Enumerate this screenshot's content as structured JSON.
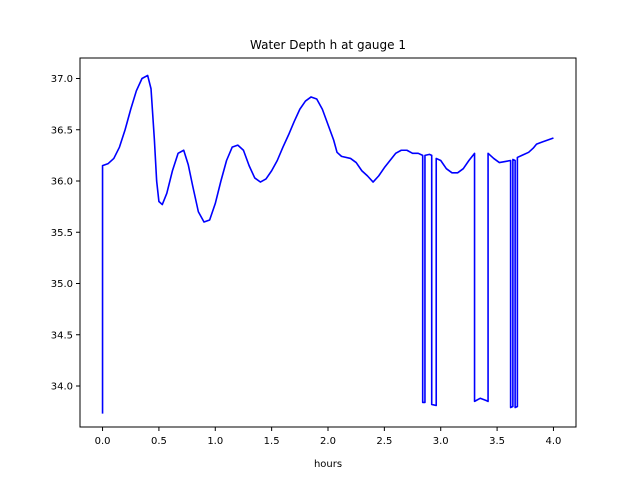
{
  "chart_data": {
    "type": "line",
    "title": "Water Depth h at gauge 1",
    "xlabel": "hours",
    "ylabel": "",
    "xlim": [
      -0.2,
      4.2
    ],
    "ylim": [
      33.6,
      37.2
    ],
    "xticks": [
      0.0,
      0.5,
      1.0,
      1.5,
      2.0,
      2.5,
      3.0,
      3.5,
      4.0
    ],
    "xtick_labels": [
      "0.0",
      "0.5",
      "1.0",
      "1.5",
      "2.0",
      "2.5",
      "3.0",
      "3.5",
      "4.0"
    ],
    "yticks": [
      34.0,
      34.5,
      35.0,
      35.5,
      36.0,
      36.5,
      37.0
    ],
    "ytick_labels": [
      "34.0",
      "34.5",
      "35.0",
      "35.5",
      "36.0",
      "36.5",
      "37.0"
    ],
    "grid": false,
    "legend": "none",
    "series": [
      {
        "color": "#0000ff",
        "points": [
          [
            0.0,
            33.73
          ],
          [
            0.0,
            36.15
          ],
          [
            0.05,
            36.17
          ],
          [
            0.1,
            36.22
          ],
          [
            0.15,
            36.33
          ],
          [
            0.2,
            36.5
          ],
          [
            0.25,
            36.7
          ],
          [
            0.3,
            36.88
          ],
          [
            0.35,
            37.0
          ],
          [
            0.4,
            37.03
          ],
          [
            0.43,
            36.9
          ],
          [
            0.46,
            36.4
          ],
          [
            0.48,
            36.0
          ],
          [
            0.5,
            35.8
          ],
          [
            0.53,
            35.77
          ],
          [
            0.57,
            35.88
          ],
          [
            0.62,
            36.1
          ],
          [
            0.67,
            36.27
          ],
          [
            0.72,
            36.3
          ],
          [
            0.76,
            36.16
          ],
          [
            0.8,
            35.95
          ],
          [
            0.85,
            35.7
          ],
          [
            0.9,
            35.6
          ],
          [
            0.95,
            35.62
          ],
          [
            1.0,
            35.78
          ],
          [
            1.05,
            36.0
          ],
          [
            1.1,
            36.2
          ],
          [
            1.15,
            36.33
          ],
          [
            1.2,
            36.35
          ],
          [
            1.25,
            36.3
          ],
          [
            1.3,
            36.15
          ],
          [
            1.35,
            36.03
          ],
          [
            1.4,
            35.99
          ],
          [
            1.45,
            36.02
          ],
          [
            1.5,
            36.1
          ],
          [
            1.55,
            36.2
          ],
          [
            1.6,
            36.33
          ],
          [
            1.65,
            36.45
          ],
          [
            1.7,
            36.58
          ],
          [
            1.75,
            36.7
          ],
          [
            1.8,
            36.78
          ],
          [
            1.85,
            36.82
          ],
          [
            1.9,
            36.8
          ],
          [
            1.95,
            36.7
          ],
          [
            2.0,
            36.55
          ],
          [
            2.05,
            36.4
          ],
          [
            2.08,
            36.28
          ],
          [
            2.12,
            36.24
          ],
          [
            2.2,
            36.22
          ],
          [
            2.25,
            36.18
          ],
          [
            2.3,
            36.1
          ],
          [
            2.35,
            36.05
          ],
          [
            2.4,
            35.99
          ],
          [
            2.45,
            36.05
          ],
          [
            2.5,
            36.13
          ],
          [
            2.55,
            36.2
          ],
          [
            2.6,
            36.27
          ],
          [
            2.65,
            36.3
          ],
          [
            2.7,
            36.3
          ],
          [
            2.75,
            36.27
          ],
          [
            2.8,
            36.27
          ],
          [
            2.84,
            36.25
          ],
          [
            2.84,
            33.84
          ],
          [
            2.86,
            33.84
          ],
          [
            2.86,
            36.25
          ],
          [
            2.9,
            36.26
          ],
          [
            2.92,
            36.25
          ],
          [
            2.92,
            33.82
          ],
          [
            2.96,
            33.81
          ],
          [
            2.96,
            36.22
          ],
          [
            3.0,
            36.2
          ],
          [
            3.05,
            36.12
          ],
          [
            3.1,
            36.08
          ],
          [
            3.15,
            36.08
          ],
          [
            3.2,
            36.12
          ],
          [
            3.25,
            36.2
          ],
          [
            3.3,
            36.27
          ],
          [
            3.3,
            33.85
          ],
          [
            3.35,
            33.88
          ],
          [
            3.4,
            33.86
          ],
          [
            3.42,
            33.85
          ],
          [
            3.42,
            36.27
          ],
          [
            3.47,
            36.22
          ],
          [
            3.52,
            36.18
          ],
          [
            3.57,
            36.19
          ],
          [
            3.62,
            36.2
          ],
          [
            3.62,
            33.79
          ],
          [
            3.64,
            33.8
          ],
          [
            3.64,
            36.21
          ],
          [
            3.66,
            36.2
          ],
          [
            3.66,
            33.79
          ],
          [
            3.68,
            33.8
          ],
          [
            3.68,
            36.23
          ],
          [
            3.72,
            36.25
          ],
          [
            3.78,
            36.28
          ],
          [
            3.82,
            36.32
          ],
          [
            3.85,
            36.36
          ],
          [
            3.9,
            36.38
          ],
          [
            3.95,
            36.4
          ],
          [
            4.0,
            36.42
          ]
        ]
      }
    ]
  }
}
